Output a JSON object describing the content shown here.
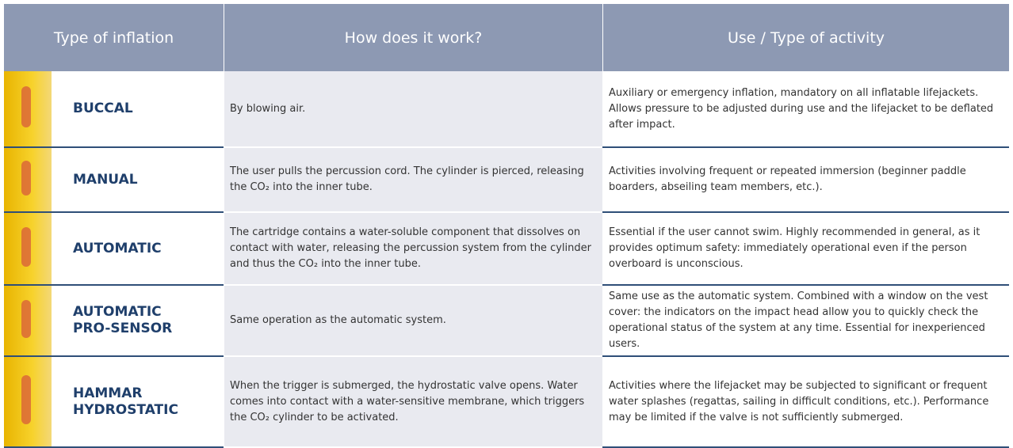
{
  "table": {
    "header": [
      "Type of inflation",
      "How does it work?",
      "Use / Type of activity"
    ],
    "rows": [
      [
        "BUCCAL",
        "By blowing air.",
        "Auxiliary or emergency inflation, mandatory on all inflatable lifejackets. Allows pressure to be adjusted during use and the lifejacket to be deflated after impact."
      ],
      [
        "MANUAL",
        "The user pulls the percussion cord. The cylinder is pierced, releasing the CO₂ into the inner tube.",
        "Activities involving frequent or repeated immersion (beginner paddle boarders, abseiling team members, etc.)."
      ],
      [
        "AUTOMATIC",
        "The cartridge contains a water-soluble component that dissolves on contact with water, releasing the percussion system from the cylinder and thus the CO₂ into the inner tube.",
        "Essential if the user cannot swim. Highly recommended in general, as it provides optimum safety: immediately operational even if the person overboard is unconscious."
      ],
      [
        "AUTOMATIC PRO-SENSOR",
        "Same operation as the automatic system.",
        "Same use as the automatic system. Combined with a window on the vest cover: the indicators on the impact head allow you to quickly check the operational status of the system at any time. Essential for inexperienced users."
      ],
      [
        "HAMMAR HYDROSTATIC",
        "When the trigger is submerged, the hydrostatic valve opens. Water comes into contact with a water-sensitive membrane, which triggers the CO₂ cylinder to be activated.",
        "Activities where the lifejacket may be subjected to significant or frequent water splashes (regattas, sailing in difficult conditions, etc.). Performance may be limited if the valve is not sufficiently submerged."
      ]
    ]
  }
}
